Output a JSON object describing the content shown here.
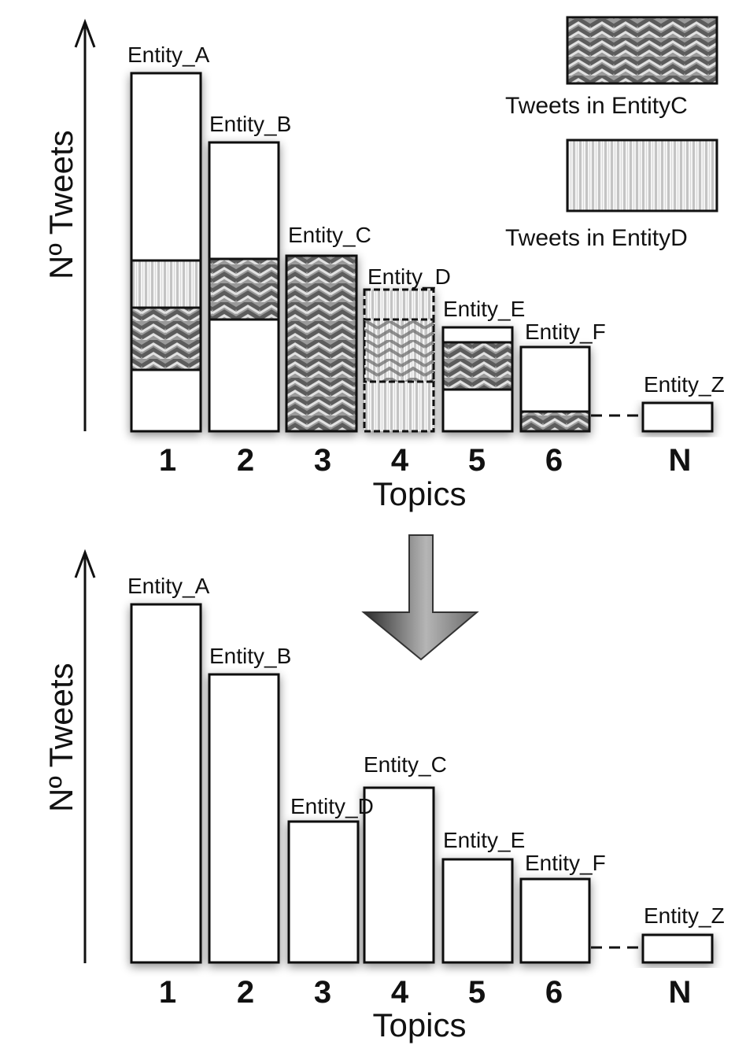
{
  "top_panel": {
    "y_axis_label": "Nº Tweets",
    "x_axis_label": "Topics",
    "ticks": [
      "1",
      "2",
      "3",
      "4",
      "5",
      "6",
      "N"
    ],
    "bars": [
      {
        "topic": "1",
        "entity": "Entity_A"
      },
      {
        "topic": "2",
        "entity": "Entity_B"
      },
      {
        "topic": "3",
        "entity": "Entity_C"
      },
      {
        "topic": "4",
        "entity": "Entity_D"
      },
      {
        "topic": "5",
        "entity": "Entity_E"
      },
      {
        "topic": "6",
        "entity": "Entity_F"
      },
      {
        "topic": "N",
        "entity": "Entity_Z"
      }
    ]
  },
  "legend": {
    "entity_c": "Tweets in EntityC",
    "entity_d": "Tweets in EntityD"
  },
  "bottom_panel": {
    "y_axis_label": "Nº Tweets",
    "x_axis_label": "Topics",
    "ticks": [
      "1",
      "2",
      "3",
      "4",
      "5",
      "6",
      "N"
    ],
    "bars": [
      {
        "topic": "1",
        "entity": "Entity_A"
      },
      {
        "topic": "2",
        "entity": "Entity_B"
      },
      {
        "topic": "3",
        "entity": "Entity_D"
      },
      {
        "topic": "4",
        "entity": "Entity_C"
      },
      {
        "topic": "5",
        "entity": "Entity_E"
      },
      {
        "topic": "6",
        "entity": "Entity_F"
      },
      {
        "topic": "N",
        "entity": "Entity_Z"
      }
    ]
  },
  "colors": {
    "bar_fill": "#ffffff",
    "stroke": "#111111",
    "zigzag_dark": "#6a6a6a",
    "zigzag_light": "#d6d6d6",
    "stripe_dark": "#c8c8c8",
    "stripe_light": "#f2f2f2"
  },
  "icons": {
    "transition": "down-arrow-icon"
  }
}
